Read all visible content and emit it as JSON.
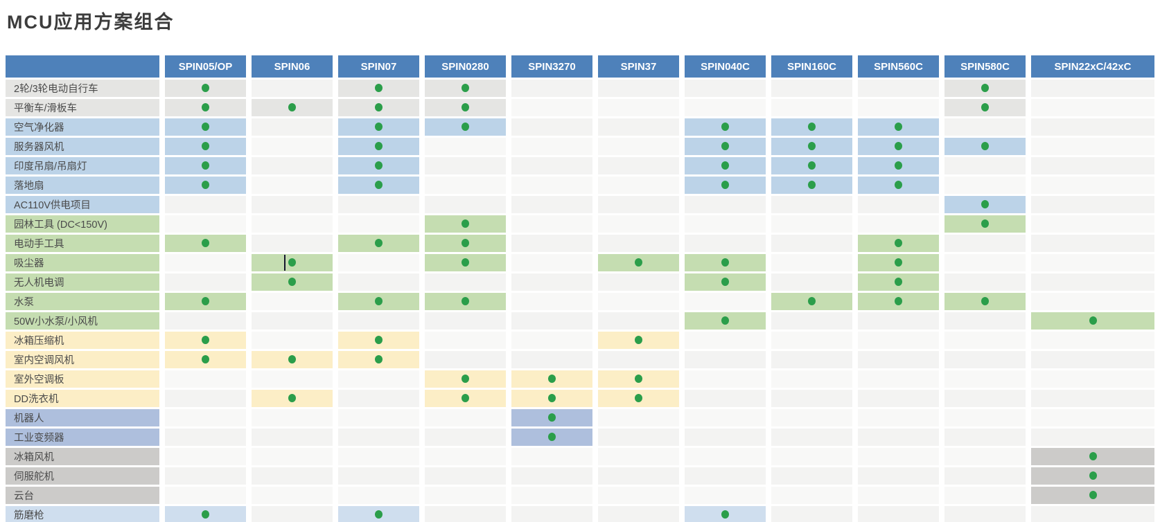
{
  "title": "MCU应用方案组合",
  "chart_data": {
    "type": "table",
    "title": "MCU应用方案组合",
    "columns": [
      "SPIN05/OP",
      "SPIN06",
      "SPIN07",
      "SPIN0280",
      "SPIN3270",
      "SPIN37",
      "SPIN040C",
      "SPIN160C",
      "SPIN560C",
      "SPIN580C",
      "SPIN22xC/42xC"
    ],
    "dot_meaning": "绿点 = 该MCU支持该应用方案",
    "rows": [
      {
        "label": "2轮/3轮电动自行车",
        "category": "gray",
        "dots": [
          1,
          0,
          1,
          1,
          0,
          0,
          0,
          0,
          0,
          1,
          0
        ]
      },
      {
        "label": "平衡车/滑板车",
        "category": "gray",
        "dots": [
          1,
          1,
          1,
          1,
          0,
          0,
          0,
          0,
          0,
          1,
          0
        ]
      },
      {
        "label": "空气净化器",
        "category": "blue",
        "dots": [
          1,
          0,
          1,
          1,
          0,
          0,
          1,
          1,
          1,
          0,
          0
        ]
      },
      {
        "label": "服务器风机",
        "category": "blue",
        "dots": [
          1,
          0,
          1,
          0,
          0,
          0,
          1,
          1,
          1,
          1,
          0
        ]
      },
      {
        "label": "印度吊扇/吊扇灯",
        "category": "blue",
        "dots": [
          1,
          0,
          1,
          0,
          0,
          0,
          1,
          1,
          1,
          0,
          0
        ]
      },
      {
        "label": "落地扇",
        "category": "blue",
        "dots": [
          1,
          0,
          1,
          0,
          0,
          0,
          1,
          1,
          1,
          0,
          0
        ]
      },
      {
        "label": "AC110V供电项目",
        "category": "blue",
        "dots": [
          0,
          0,
          0,
          0,
          0,
          0,
          0,
          0,
          0,
          1,
          0
        ]
      },
      {
        "label": "园林工具 (DC<150V)",
        "category": "green",
        "dots": [
          0,
          0,
          0,
          1,
          0,
          0,
          0,
          0,
          0,
          1,
          0
        ]
      },
      {
        "label": "电动手工具",
        "category": "green",
        "dots": [
          1,
          0,
          1,
          1,
          0,
          0,
          0,
          0,
          1,
          0,
          0
        ]
      },
      {
        "label": "吸尘器",
        "category": "green",
        "dots": [
          0,
          1,
          0,
          1,
          0,
          1,
          1,
          0,
          1,
          0,
          0
        ]
      },
      {
        "label": "无人机电调",
        "category": "green",
        "dots": [
          0,
          1,
          0,
          0,
          0,
          0,
          1,
          0,
          1,
          0,
          0
        ]
      },
      {
        "label": "水泵",
        "category": "green",
        "dots": [
          1,
          0,
          1,
          1,
          0,
          0,
          0,
          1,
          1,
          1,
          0
        ]
      },
      {
        "label": "50W小水泵/小风机",
        "category": "green",
        "dots": [
          0,
          0,
          0,
          0,
          0,
          0,
          1,
          0,
          0,
          0,
          1
        ]
      },
      {
        "label": "冰箱压缩机",
        "category": "yellow",
        "dots": [
          1,
          0,
          1,
          0,
          0,
          1,
          0,
          0,
          0,
          0,
          0
        ]
      },
      {
        "label": "室内空调风机",
        "category": "yellow",
        "dots": [
          1,
          1,
          1,
          0,
          0,
          0,
          0,
          0,
          0,
          0,
          0
        ]
      },
      {
        "label": "室外空调板",
        "category": "yellow",
        "dots": [
          0,
          0,
          0,
          1,
          1,
          1,
          0,
          0,
          0,
          0,
          0
        ]
      },
      {
        "label": "DD洗衣机",
        "category": "yellow",
        "dots": [
          0,
          1,
          0,
          1,
          1,
          1,
          0,
          0,
          0,
          0,
          0
        ]
      },
      {
        "label": "机器人",
        "category": "indigo",
        "dots": [
          0,
          0,
          0,
          0,
          1,
          0,
          0,
          0,
          0,
          0,
          0
        ]
      },
      {
        "label": "工业变频器",
        "category": "indigo",
        "dots": [
          0,
          0,
          0,
          0,
          1,
          0,
          0,
          0,
          0,
          0,
          0
        ]
      },
      {
        "label": "冰箱风机",
        "category": "darkgray",
        "dots": [
          0,
          0,
          0,
          0,
          0,
          0,
          0,
          0,
          0,
          0,
          1
        ]
      },
      {
        "label": "伺服舵机",
        "category": "darkgray",
        "dots": [
          0,
          0,
          0,
          0,
          0,
          0,
          0,
          0,
          0,
          0,
          1
        ]
      },
      {
        "label": "云台",
        "category": "darkgray",
        "dots": [
          0,
          0,
          0,
          0,
          0,
          0,
          0,
          0,
          0,
          0,
          1
        ]
      },
      {
        "label": "筋磨枪",
        "category": "lightblue",
        "dots": [
          1,
          0,
          1,
          0,
          0,
          0,
          1,
          0,
          0,
          0,
          0
        ]
      }
    ]
  },
  "colors": {
    "header_bg": "#4e81ba",
    "header_text": "#ffffff",
    "dot": "#2b9e4a",
    "categories": {
      "gray": "#e5e5e3",
      "blue": "#bcd3e8",
      "green": "#c5ddb1",
      "yellow": "#fceec6",
      "indigo": "#aebfdd",
      "darkgray": "#cccbc9",
      "lightblue": "#cfdeee"
    }
  },
  "artifact": {
    "description": "text-cursor vertical line beside dot",
    "row_index": 9,
    "col_index": 1
  }
}
